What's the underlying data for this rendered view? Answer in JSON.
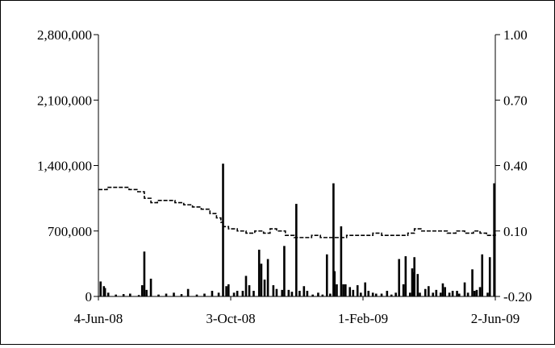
{
  "chart_data": {
    "type": "bar+line",
    "title": "",
    "xlabel": "",
    "ylabel": "",
    "y2label": "",
    "ylim": [
      0,
      2800000
    ],
    "y2lim": [
      -0.2,
      1.0
    ],
    "y_ticks": [
      "2,800,000",
      "2,100,000",
      "1,400,000",
      "700,000",
      "0"
    ],
    "y_tick_values": [
      2800000,
      2100000,
      1400000,
      700000,
      0
    ],
    "y2_ticks": [
      "1.00",
      "0.70",
      "0.40",
      "0.10",
      "-0.20"
    ],
    "y2_tick_values": [
      1.0,
      0.7,
      0.4,
      0.1,
      -0.2
    ],
    "x_ticks": [
      "4-Jun-08",
      "3-Oct-08",
      "1-Feb-09",
      "2-Jun-09"
    ],
    "x_range": [
      "2008-06-04",
      "2009-06-02"
    ],
    "grid": false,
    "legend": "none",
    "bar_color": "#000000",
    "line_color": "#000000",
    "bars_series": {
      "axis": "left",
      "points": [
        [
          "2008-06-06",
          160000
        ],
        [
          "2008-06-09",
          110000
        ],
        [
          "2008-06-10",
          90000
        ],
        [
          "2008-06-13",
          40000
        ],
        [
          "2008-06-20",
          20000
        ],
        [
          "2008-06-27",
          25000
        ],
        [
          "2008-07-03",
          30000
        ],
        [
          "2008-07-11",
          15000
        ],
        [
          "2008-07-14",
          120000
        ],
        [
          "2008-07-16",
          480000
        ],
        [
          "2008-07-18",
          70000
        ],
        [
          "2008-07-22",
          190000
        ],
        [
          "2008-07-29",
          20000
        ],
        [
          "2008-08-05",
          30000
        ],
        [
          "2008-08-12",
          40000
        ],
        [
          "2008-08-19",
          25000
        ],
        [
          "2008-08-25",
          80000
        ],
        [
          "2008-09-02",
          20000
        ],
        [
          "2008-09-09",
          30000
        ],
        [
          "2008-09-16",
          60000
        ],
        [
          "2008-09-22",
          40000
        ],
        [
          "2008-09-26",
          1420000
        ],
        [
          "2008-09-29",
          110000
        ],
        [
          "2008-10-01",
          130000
        ],
        [
          "2008-10-06",
          40000
        ],
        [
          "2008-10-09",
          60000
        ],
        [
          "2008-10-14",
          60000
        ],
        [
          "2008-10-17",
          220000
        ],
        [
          "2008-10-20",
          120000
        ],
        [
          "2008-10-24",
          60000
        ],
        [
          "2008-10-29",
          500000
        ],
        [
          "2008-10-31",
          350000
        ],
        [
          "2008-11-03",
          180000
        ],
        [
          "2008-11-06",
          400000
        ],
        [
          "2008-11-11",
          120000
        ],
        [
          "2008-11-14",
          80000
        ],
        [
          "2008-11-19",
          70000
        ],
        [
          "2008-11-21",
          540000
        ],
        [
          "2008-11-25",
          70000
        ],
        [
          "2008-11-28",
          50000
        ],
        [
          "2008-12-02",
          990000
        ],
        [
          "2008-12-05",
          60000
        ],
        [
          "2008-12-09",
          110000
        ],
        [
          "2008-12-12",
          60000
        ],
        [
          "2008-12-17",
          20000
        ],
        [
          "2008-12-22",
          40000
        ],
        [
          "2008-12-26",
          20000
        ],
        [
          "2008-12-30",
          450000
        ],
        [
          "2009-01-02",
          30000
        ],
        [
          "2009-01-05",
          1210000
        ],
        [
          "2009-01-06",
          270000
        ],
        [
          "2009-01-08",
          130000
        ],
        [
          "2009-01-12",
          750000
        ],
        [
          "2009-01-14",
          130000
        ],
        [
          "2009-01-16",
          130000
        ],
        [
          "2009-01-20",
          100000
        ],
        [
          "2009-01-23",
          70000
        ],
        [
          "2009-01-27",
          120000
        ],
        [
          "2009-01-30",
          40000
        ],
        [
          "2009-02-03",
          150000
        ],
        [
          "2009-02-06",
          60000
        ],
        [
          "2009-02-10",
          40000
        ],
        [
          "2009-02-13",
          30000
        ],
        [
          "2009-02-18",
          30000
        ],
        [
          "2009-02-23",
          60000
        ],
        [
          "2009-02-27",
          20000
        ],
        [
          "2009-03-03",
          40000
        ],
        [
          "2009-03-06",
          400000
        ],
        [
          "2009-03-10",
          130000
        ],
        [
          "2009-03-12",
          430000
        ],
        [
          "2009-03-16",
          40000
        ],
        [
          "2009-03-18",
          300000
        ],
        [
          "2009-03-19",
          260000
        ],
        [
          "2009-03-20",
          420000
        ],
        [
          "2009-03-23",
          240000
        ],
        [
          "2009-03-25",
          40000
        ],
        [
          "2009-03-30",
          80000
        ],
        [
          "2009-04-02",
          110000
        ],
        [
          "2009-04-06",
          40000
        ],
        [
          "2009-04-09",
          70000
        ],
        [
          "2009-04-13",
          40000
        ],
        [
          "2009-04-15",
          140000
        ],
        [
          "2009-04-17",
          100000
        ],
        [
          "2009-04-21",
          40000
        ],
        [
          "2009-04-24",
          60000
        ],
        [
          "2009-04-28",
          60000
        ],
        [
          "2009-04-30",
          30000
        ],
        [
          "2009-05-05",
          150000
        ],
        [
          "2009-05-08",
          40000
        ],
        [
          "2009-05-12",
          290000
        ],
        [
          "2009-05-14",
          60000
        ],
        [
          "2009-05-16",
          70000
        ],
        [
          "2009-05-19",
          100000
        ],
        [
          "2009-05-21",
          450000
        ],
        [
          "2009-05-26",
          40000
        ],
        [
          "2009-05-28",
          420000
        ],
        [
          "2009-06-01",
          1210000
        ]
      ]
    },
    "line_series": {
      "axis": "right",
      "style": "dashed-step",
      "points": [
        [
          "2008-06-04",
          0.29
        ],
        [
          "2008-06-12",
          0.3
        ],
        [
          "2008-06-24",
          0.3
        ],
        [
          "2008-07-02",
          0.29
        ],
        [
          "2008-07-10",
          0.28
        ],
        [
          "2008-07-16",
          0.25
        ],
        [
          "2008-07-22",
          0.23
        ],
        [
          "2008-07-28",
          0.24
        ],
        [
          "2008-08-05",
          0.24
        ],
        [
          "2008-08-13",
          0.23
        ],
        [
          "2008-08-21",
          0.22
        ],
        [
          "2008-08-29",
          0.21
        ],
        [
          "2008-09-06",
          0.2
        ],
        [
          "2008-09-14",
          0.18
        ],
        [
          "2008-09-20",
          0.16
        ],
        [
          "2008-09-24",
          0.14
        ],
        [
          "2008-09-26",
          0.12
        ],
        [
          "2008-10-01",
          0.11
        ],
        [
          "2008-10-09",
          0.1
        ],
        [
          "2008-10-17",
          0.09
        ],
        [
          "2008-10-25",
          0.1
        ],
        [
          "2008-11-02",
          0.09
        ],
        [
          "2008-11-08",
          0.11
        ],
        [
          "2008-11-14",
          0.1
        ],
        [
          "2008-11-22",
          0.08
        ],
        [
          "2008-11-30",
          0.07
        ],
        [
          "2008-12-08",
          0.07
        ],
        [
          "2008-12-16",
          0.08
        ],
        [
          "2008-12-24",
          0.07
        ],
        [
          "2009-01-01",
          0.07
        ],
        [
          "2009-01-09",
          0.07
        ],
        [
          "2009-01-17",
          0.08
        ],
        [
          "2009-01-25",
          0.08
        ],
        [
          "2009-02-02",
          0.08
        ],
        [
          "2009-02-10",
          0.09
        ],
        [
          "2009-02-18",
          0.08
        ],
        [
          "2009-02-26",
          0.08
        ],
        [
          "2009-03-06",
          0.08
        ],
        [
          "2009-03-14",
          0.09
        ],
        [
          "2009-03-20",
          0.11
        ],
        [
          "2009-03-26",
          0.1
        ],
        [
          "2009-04-03",
          0.1
        ],
        [
          "2009-04-11",
          0.1
        ],
        [
          "2009-04-19",
          0.09
        ],
        [
          "2009-04-27",
          0.1
        ],
        [
          "2009-05-05",
          0.09
        ],
        [
          "2009-05-13",
          0.1
        ],
        [
          "2009-05-19",
          0.09
        ],
        [
          "2009-05-25",
          0.08
        ],
        [
          "2009-06-02",
          0.09
        ]
      ]
    }
  }
}
